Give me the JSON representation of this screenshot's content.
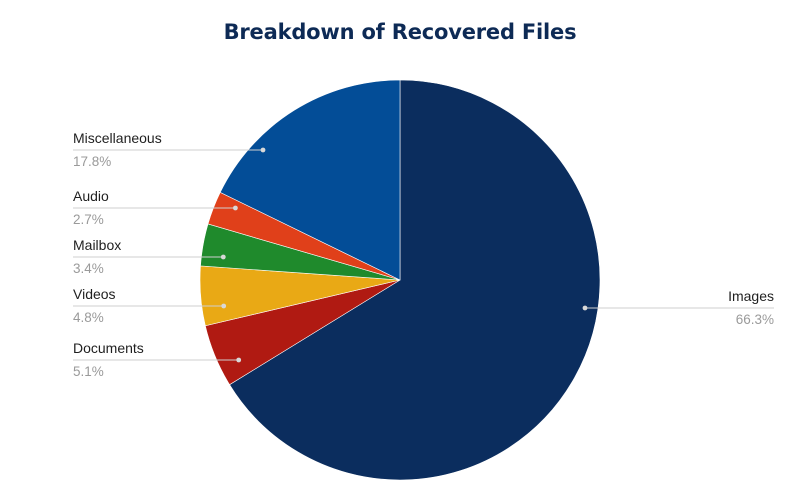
{
  "chart_data": {
    "type": "pie",
    "title": "Breakdown of Recovered Files",
    "slices": [
      {
        "label": "Images",
        "value": 66.3,
        "display": "66.3%",
        "color": "#0b2d5e"
      },
      {
        "label": "Documents",
        "value": 5.1,
        "display": "5.1%",
        "color": "#b01a12"
      },
      {
        "label": "Videos",
        "value": 4.8,
        "display": "4.8%",
        "color": "#e9a915"
      },
      {
        "label": "Mailbox",
        "value": 3.4,
        "display": "3.4%",
        "color": "#1f8a2c"
      },
      {
        "label": "Audio",
        "value": 2.7,
        "display": "2.7%",
        "color": "#e0401a"
      },
      {
        "label": "Miscellaneous",
        "value": 17.8,
        "display": "17.8%",
        "color": "#034d97"
      }
    ],
    "start": "12 o'clock",
    "direction": "clockwise",
    "legend": "none (outside labels with leader lines)"
  }
}
